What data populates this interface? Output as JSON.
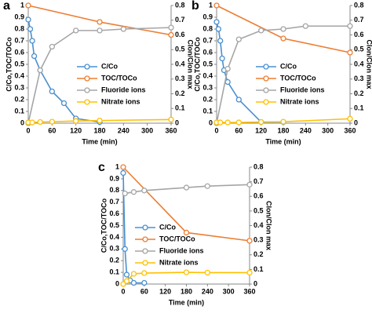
{
  "chart_data": [
    {
      "type": "line",
      "panel_label": "a",
      "xlabel": "Time (min)",
      "ylabel": "C/Co,TOC/TOCo",
      "y2label": "Clon/Clon max",
      "xlim": [
        0,
        360
      ],
      "xticks": [
        0,
        60,
        120,
        180,
        240,
        300,
        360
      ],
      "ylim": [
        0,
        1
      ],
      "yticks": [
        0,
        0.1,
        0.2,
        0.3,
        0.4,
        0.5,
        0.6,
        0.7,
        0.8,
        0.9,
        1
      ],
      "y2lim": [
        0,
        0.8
      ],
      "y2ticks": [
        0,
        0.1,
        0.2,
        0.3,
        0.4,
        0.5,
        0.6,
        0.7,
        0.8
      ],
      "legend": "lower right",
      "series": [
        {
          "name": "C/Co",
          "color": "#4a90d0",
          "x": [
            0,
            5,
            10,
            15,
            30,
            60,
            90,
            120,
            180
          ],
          "values": [
            0.88,
            0.8,
            0.7,
            0.57,
            0.45,
            0.27,
            0.17,
            0.04,
            0.01
          ]
        },
        {
          "name": "TOC/TOCo",
          "color": "#ed7d31",
          "x": [
            0,
            180,
            360
          ],
          "values": [
            1,
            0.86,
            0.75
          ]
        },
        {
          "name": "Fluoride ions",
          "color": "#a5a5a5",
          "axis": "y2",
          "x": [
            0,
            30,
            60,
            120,
            180,
            240,
            360
          ],
          "values": [
            0,
            0.36,
            0.52,
            0.63,
            0.63,
            0.64,
            0.65
          ]
        },
        {
          "name": "Nitrate ions",
          "color": "#ffc000",
          "axis": "y2",
          "x": [
            0,
            10,
            30,
            60,
            120,
            180,
            360
          ],
          "values": [
            0.005,
            0.005,
            0.008,
            0.01,
            0.015,
            0.018,
            0.025
          ]
        }
      ]
    },
    {
      "type": "line",
      "panel_label": "b",
      "xlabel": "Time (min)",
      "ylabel": "C/Co,TOC/TOCo",
      "y2label": "Clon/Clon max",
      "xlim": [
        0,
        360
      ],
      "xticks": [
        0,
        60,
        120,
        180,
        240,
        300,
        360
      ],
      "ylim": [
        0,
        1
      ],
      "yticks": [
        0,
        0.1,
        0.2,
        0.3,
        0.4,
        0.5,
        0.6,
        0.7,
        0.8,
        0.9,
        1
      ],
      "y2lim": [
        0,
        0.8
      ],
      "y2ticks": [
        0,
        0.1,
        0.2,
        0.3,
        0.4,
        0.5,
        0.6,
        0.7,
        0.8
      ],
      "legend": "lower right",
      "series": [
        {
          "name": "C/Co",
          "color": "#4a90d0",
          "x": [
            0,
            5,
            10,
            15,
            20,
            30,
            60,
            120,
            180
          ],
          "values": [
            0.86,
            0.8,
            0.7,
            0.55,
            0.45,
            0.35,
            0.2,
            0.01,
            0.01
          ]
        },
        {
          "name": "TOC/TOCo",
          "color": "#ed7d31",
          "x": [
            0,
            180,
            360
          ],
          "values": [
            1,
            0.72,
            0.6
          ]
        },
        {
          "name": "Fluoride ions",
          "color": "#a5a5a5",
          "axis": "y2",
          "x": [
            0,
            30,
            60,
            120,
            180,
            240,
            360
          ],
          "values": [
            0,
            0.37,
            0.57,
            0.63,
            0.64,
            0.66,
            0.66
          ]
        },
        {
          "name": "Nitrate ions",
          "color": "#ffc000",
          "axis": "y2",
          "x": [
            0,
            10,
            30,
            60,
            120,
            180,
            360
          ],
          "values": [
            0.005,
            0.005,
            0.005,
            0.005,
            0.008,
            0.01,
            0.03
          ]
        }
      ]
    },
    {
      "type": "line",
      "panel_label": "c",
      "xlabel": "Time (min)",
      "ylabel": "C/Co,TOC/TOCo",
      "y2label": "Clon/Clon max",
      "xlim": [
        0,
        360
      ],
      "xticks": [
        0,
        60,
        120,
        180,
        240,
        300,
        360
      ],
      "ylim": [
        0,
        1
      ],
      "yticks": [
        0,
        0.1,
        0.2,
        0.3,
        0.4,
        0.5,
        0.6,
        0.7,
        0.8,
        0.9,
        1
      ],
      "y2lim": [
        0,
        0.8
      ],
      "y2ticks": [
        0,
        0.1,
        0.2,
        0.3,
        0.4,
        0.5,
        0.6,
        0.7,
        0.8
      ],
      "legend": "lower left",
      "series": [
        {
          "name": "C/Co",
          "color": "#4a90d0",
          "x": [
            0,
            5,
            10,
            20,
            30,
            60
          ],
          "values": [
            0.95,
            0.3,
            0.08,
            0.03,
            0.01,
            0.01
          ]
        },
        {
          "name": "TOC/TOCo",
          "color": "#ed7d31",
          "x": [
            0,
            180,
            360
          ],
          "values": [
            1,
            0.44,
            0.37
          ]
        },
        {
          "name": "Fluoride ions",
          "color": "#a5a5a5",
          "axis": "y2",
          "x": [
            5,
            30,
            60,
            180,
            240,
            360
          ],
          "values": [
            0.62,
            0.63,
            0.64,
            0.66,
            0.67,
            0.68
          ]
        },
        {
          "name": "Nitrate ions",
          "color": "#ffc000",
          "axis": "y2",
          "x": [
            0,
            10,
            30,
            60,
            180,
            240,
            360
          ],
          "values": [
            0,
            0.02,
            0.07,
            0.075,
            0.08,
            0.078,
            0.078
          ]
        }
      ]
    }
  ]
}
